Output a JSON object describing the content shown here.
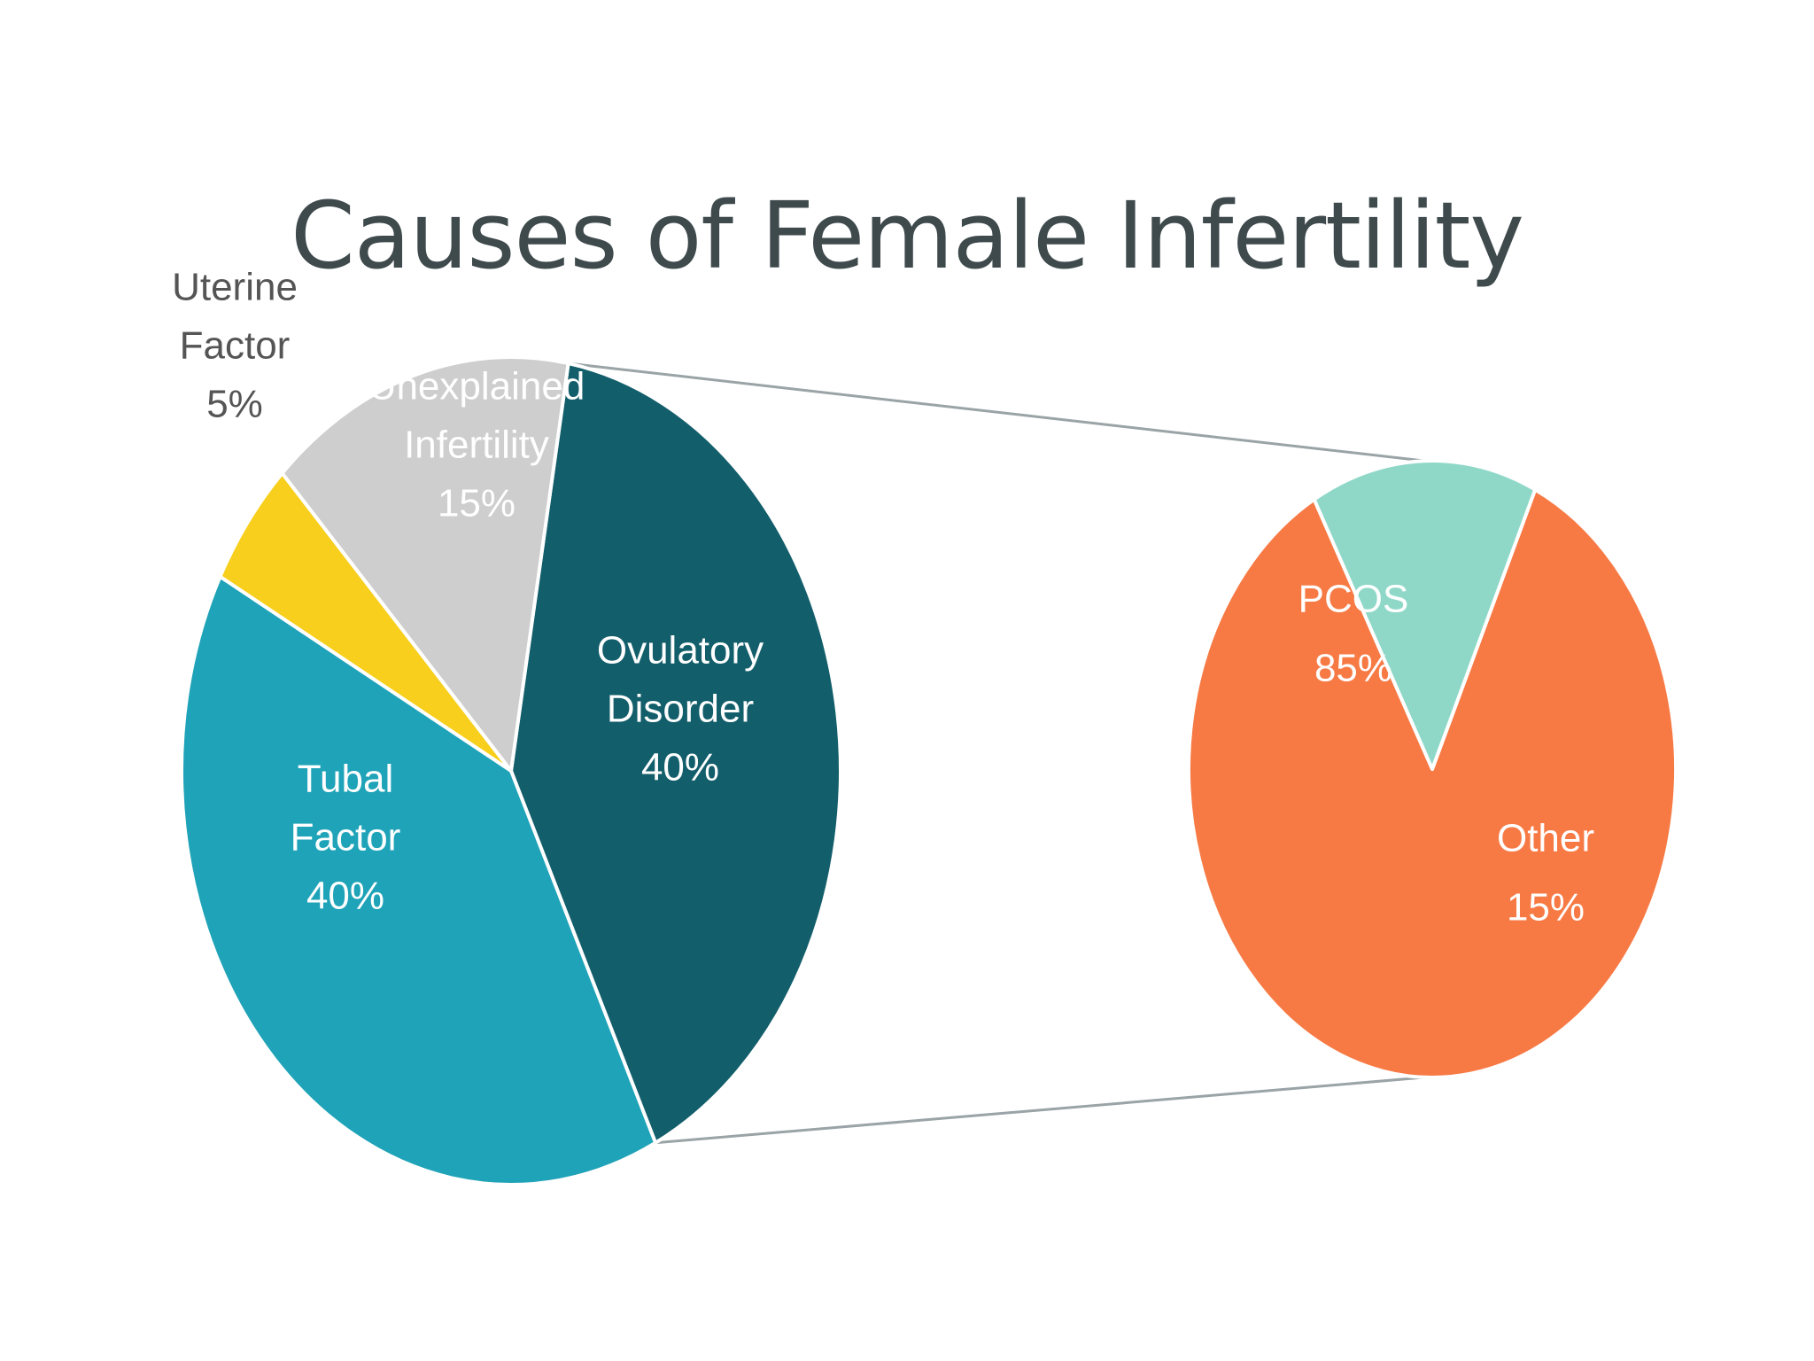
{
  "chart_data": [
    {
      "type": "pie",
      "title": "Causes of Female Infertility",
      "slices": [
        {
          "label_lines": [
            "Ovulatory",
            "Disorder"
          ],
          "value_label": "40%",
          "value": 40,
          "color": "#135e6b",
          "text_color": "#ffffff"
        },
        {
          "label_lines": [
            "Tubal",
            "Factor"
          ],
          "value_label": "40%",
          "value": 40,
          "color": "#1fa3b8",
          "text_color": "#ffffff"
        },
        {
          "label_lines": [
            "Uterine",
            "Factor"
          ],
          "value_label": "5%",
          "value": 5,
          "color": "#f7cf1c",
          "text_color": "#4d4d4d"
        },
        {
          "label_lines": [
            "Unexplained",
            "Infertility"
          ],
          "value_label": "15%",
          "value": 15,
          "color": "#cecece",
          "text_color": "#ffffff"
        }
      ],
      "breakout_of": "Ovulatory Disorder"
    },
    {
      "type": "pie",
      "slices": [
        {
          "label_lines": [
            "PCOS"
          ],
          "value_label": "85%",
          "value": 85,
          "color": "#f77a45",
          "text_color": "#ffffff"
        },
        {
          "label_lines": [
            "Other"
          ],
          "value_label": "15%",
          "value": 15,
          "color": "#8fd8c8",
          "text_color": "#ffffff"
        }
      ]
    }
  ],
  "colors": {
    "background": "#ffffff",
    "title": "#3f4a4d",
    "connector": "#9aa3a6"
  }
}
